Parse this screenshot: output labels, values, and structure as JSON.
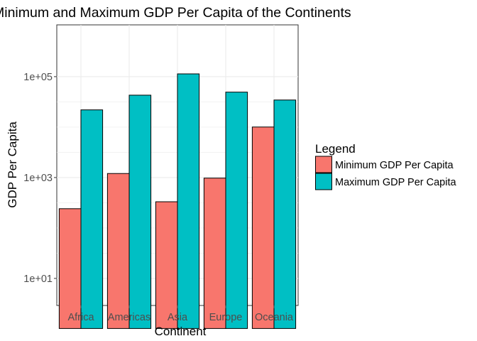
{
  "chart_data": {
    "type": "bar",
    "title": "Minimum and Maximum GDP Per Capita of the Continents",
    "xlabel": "Continent",
    "ylabel": "GDP Per Capita",
    "y_scale": "log10",
    "ylim": [
      1,
      170000
    ],
    "y_ticks": [
      10,
      1000,
      100000
    ],
    "y_tick_labels": [
      "1e+01",
      "1e+03",
      "1e+05"
    ],
    "categories": [
      "Africa",
      "Americas",
      "Asia",
      "Europe",
      "Oceania"
    ],
    "series": [
      {
        "name": "Minimum GDP Per Capita",
        "color": "#F8766D",
        "values": [
          241,
          1202,
          331,
          974,
          10040
        ]
      },
      {
        "name": "Maximum GDP Per Capita",
        "color": "#00BFC4",
        "values": [
          21951,
          42952,
          113523,
          49357,
          34435
        ]
      }
    ],
    "grid": true,
    "legend": {
      "title": "Legend",
      "position": "right"
    }
  }
}
